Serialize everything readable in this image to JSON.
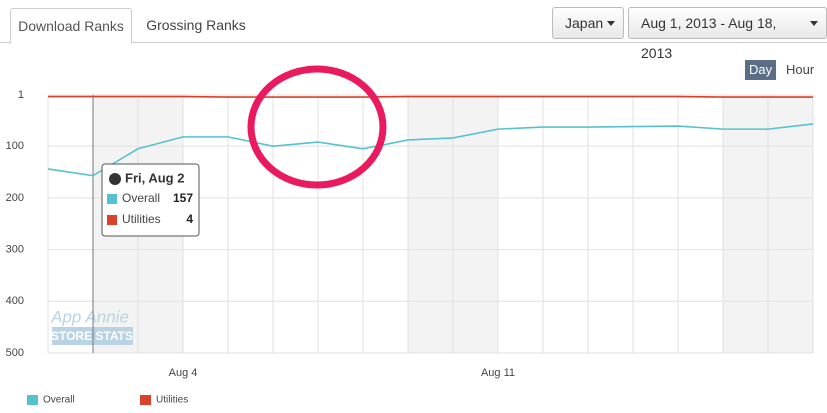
{
  "tabs": [
    "Download Ranks",
    "Grossing Ranks"
  ],
  "filters": {
    "country": "Japan",
    "date_range": "Aug 1, 2013 - Aug 18, 2013"
  },
  "granularity": [
    "Day",
    "Hour"
  ],
  "watermark": [
    "App Annie",
    "STORE STATS"
  ],
  "tooltip": {
    "title": "Fri, Aug 2"
  },
  "chart_data": {
    "type": "line",
    "categories": [
      null,
      null,
      null,
      "Aug 4",
      null,
      null,
      null,
      null,
      null,
      null,
      "Aug 11",
      null,
      null,
      null,
      null,
      null,
      null,
      null
    ],
    "series": [
      {
        "name": "Overall",
        "color": "#56c2d0",
        "values": [
          144,
          157,
          105,
          82,
          82,
          100,
          92,
          105,
          88,
          84,
          67,
          63,
          63,
          62,
          61,
          67,
          67,
          57
        ]
      },
      {
        "name": "Utilities",
        "color": "#d9412b",
        "values": [
          4,
          4,
          4,
          4,
          5,
          5,
          5,
          5,
          4,
          4,
          4,
          4,
          4,
          4,
          4,
          5,
          5,
          5
        ]
      }
    ],
    "ylim": [
      1,
      500
    ],
    "yticks": [
      1,
      100,
      200,
      300,
      400,
      500
    ],
    "y_inverted": true,
    "grid": true,
    "legend": "bottom-left"
  }
}
